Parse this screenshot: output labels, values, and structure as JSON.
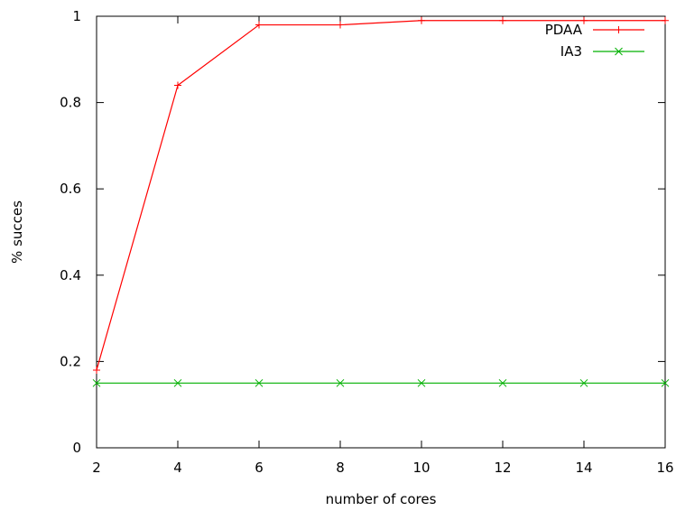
{
  "chart_data": {
    "type": "line",
    "xlabel": "number of cores",
    "ylabel": "% succes",
    "xlim": [
      2,
      16
    ],
    "ylim": [
      0,
      1
    ],
    "xticks": [
      2,
      4,
      6,
      8,
      10,
      12,
      14,
      16
    ],
    "yticks": [
      0,
      0.2,
      0.4,
      0.6,
      0.8,
      1
    ],
    "xtick_labels": [
      "2",
      "4",
      "6",
      "8",
      "10",
      "12",
      "14",
      "16"
    ],
    "ytick_labels": [
      "0",
      "0.2",
      "0.4",
      "0.6",
      "0.8",
      "1"
    ],
    "grid": false,
    "legend_position": "top-right",
    "x": [
      2,
      4,
      6,
      8,
      10,
      12,
      14,
      16
    ],
    "series": [
      {
        "name": "PDAA",
        "color": "#ff0000",
        "marker": "plus",
        "values": [
          0.18,
          0.84,
          0.98,
          0.98,
          0.99,
          0.99,
          0.99,
          0.99
        ]
      },
      {
        "name": "IA3",
        "color": "#00b000",
        "marker": "cross",
        "values": [
          0.15,
          0.15,
          0.15,
          0.15,
          0.15,
          0.15,
          0.15,
          0.15
        ]
      }
    ]
  }
}
